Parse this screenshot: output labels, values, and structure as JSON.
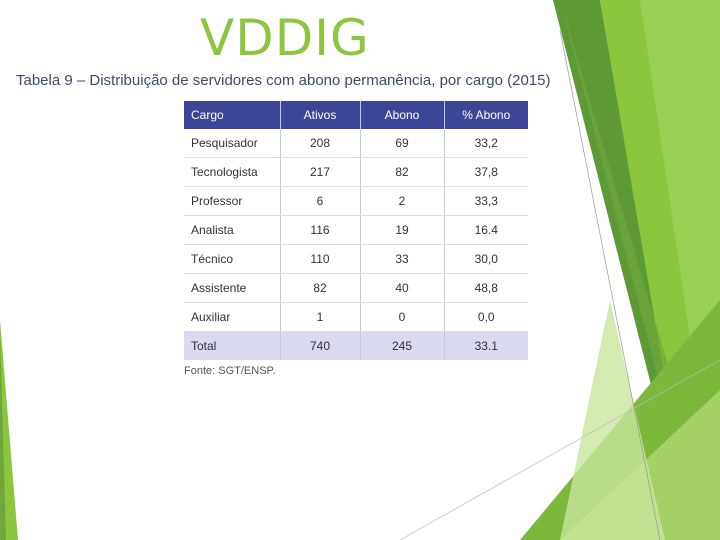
{
  "slide": {
    "title": "VDDIG",
    "caption": "Tabela 9 – Distribuição de servidores com abono permanência, por cargo (2015)",
    "source": "Fonte: SGT/ENSP."
  },
  "table": {
    "headers": [
      "Cargo",
      "Ativos",
      "Abono",
      "% Abono"
    ],
    "rows": [
      [
        "Pesquisador",
        "208",
        "69",
        "33,2"
      ],
      [
        "Tecnologista",
        "217",
        "82",
        "37,8"
      ],
      [
        "Professor",
        "6",
        "2",
        "33,3"
      ],
      [
        "Analista",
        "116",
        "19",
        "16.4"
      ],
      [
        "Técnico",
        "110",
        "33",
        "30,0"
      ],
      [
        "Assistente",
        "82",
        "40",
        "48,8"
      ],
      [
        "Auxiliar",
        "1",
        "0",
        "0,0"
      ]
    ],
    "total": [
      "Total",
      "740",
      "245",
      "33.1"
    ]
  },
  "colors": {
    "accent_green": "#8cc63f",
    "header_bg": "#3d4597",
    "total_bg": "#d9d9ef"
  }
}
